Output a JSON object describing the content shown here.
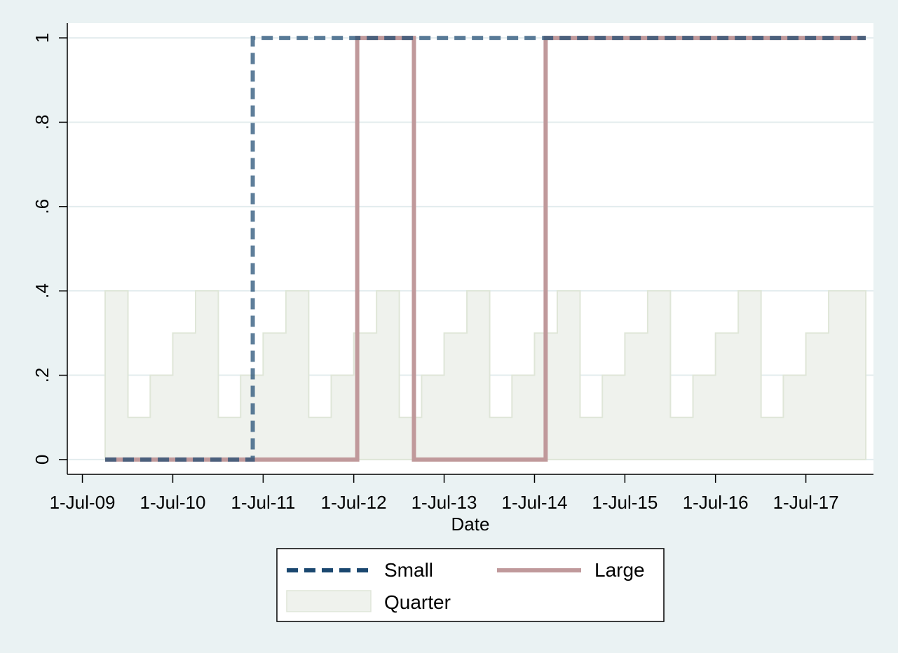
{
  "chart_data": {
    "type": "line",
    "title": "",
    "xlabel": "Date",
    "ylabel": "",
    "x_axis": {
      "type": "date",
      "range": [
        "2009-05-01",
        "2018-03-31"
      ],
      "ticks": [
        "2009-07-01",
        "2010-07-01",
        "2011-07-01",
        "2012-07-01",
        "2013-07-01",
        "2014-07-01",
        "2015-07-01",
        "2016-07-01",
        "2017-07-01"
      ],
      "tick_labels": [
        "1-Jul-09",
        "1-Jul-10",
        "1-Jul-11",
        "1-Jul-12",
        "1-Jul-13",
        "1-Jul-14",
        "1-Jul-15",
        "1-Jul-16",
        "1-Jul-17"
      ]
    },
    "y_axis": {
      "range": [
        -0.035,
        1.035
      ],
      "ticks": [
        0,
        0.2,
        0.4,
        0.6,
        0.8,
        1
      ],
      "tick_labels": [
        "0",
        ".2",
        ".4",
        ".6",
        ".8",
        "1"
      ]
    },
    "grid": true,
    "legend_placement": "bottom",
    "colors": {
      "small": "#1a476f",
      "large": "#c0999b",
      "quarter_fill": "#eff2ed",
      "quarter_edge": "#dfe6d8",
      "plot_bg": "#ffffff",
      "outer_bg": "#eaf2f3",
      "grid": "#e3ecee"
    },
    "series": [
      {
        "name": "Small",
        "kind": "step-line",
        "style": "dashed",
        "points": [
          {
            "x": "2009-10-01",
            "y": 0
          },
          {
            "x": "2011-05-20",
            "y": 0
          },
          {
            "x": "2011-05-20",
            "y": 1
          },
          {
            "x": "2018-02-28",
            "y": 1
          }
        ]
      },
      {
        "name": "Large",
        "kind": "step-line",
        "style": "solid",
        "points": [
          {
            "x": "2009-10-01",
            "y": 0
          },
          {
            "x": "2012-07-15",
            "y": 0
          },
          {
            "x": "2012-07-15",
            "y": 1
          },
          {
            "x": "2013-03-01",
            "y": 1
          },
          {
            "x": "2013-03-01",
            "y": 0
          },
          {
            "x": "2014-08-15",
            "y": 0
          },
          {
            "x": "2014-08-15",
            "y": 1
          },
          {
            "x": "2018-02-28",
            "y": 1
          }
        ]
      },
      {
        "name": "Quarter",
        "kind": "step-area",
        "start": "2009-10-01",
        "end": "2018-02-28",
        "steps": [
          {
            "x": "2009-10-01",
            "y": 0.4
          },
          {
            "x": "2010-01-01",
            "y": 0.1
          },
          {
            "x": "2010-04-01",
            "y": 0.2
          },
          {
            "x": "2010-07-01",
            "y": 0.3
          },
          {
            "x": "2010-10-01",
            "y": 0.4
          },
          {
            "x": "2011-01-01",
            "y": 0.1
          },
          {
            "x": "2011-04-01",
            "y": 0.2
          },
          {
            "x": "2011-07-01",
            "y": 0.3
          },
          {
            "x": "2011-10-01",
            "y": 0.4
          },
          {
            "x": "2012-01-01",
            "y": 0.1
          },
          {
            "x": "2012-04-01",
            "y": 0.2
          },
          {
            "x": "2012-07-01",
            "y": 0.3
          },
          {
            "x": "2012-10-01",
            "y": 0.4
          },
          {
            "x": "2013-01-01",
            "y": 0.1
          },
          {
            "x": "2013-04-01",
            "y": 0.2
          },
          {
            "x": "2013-07-01",
            "y": 0.3
          },
          {
            "x": "2013-10-01",
            "y": 0.4
          },
          {
            "x": "2014-01-01",
            "y": 0.1
          },
          {
            "x": "2014-04-01",
            "y": 0.2
          },
          {
            "x": "2014-07-01",
            "y": 0.3
          },
          {
            "x": "2014-10-01",
            "y": 0.4
          },
          {
            "x": "2015-01-01",
            "y": 0.1
          },
          {
            "x": "2015-04-01",
            "y": 0.2
          },
          {
            "x": "2015-07-01",
            "y": 0.3
          },
          {
            "x": "2015-10-01",
            "y": 0.4
          },
          {
            "x": "2016-01-01",
            "y": 0.1
          },
          {
            "x": "2016-04-01",
            "y": 0.2
          },
          {
            "x": "2016-07-01",
            "y": 0.3
          },
          {
            "x": "2016-10-01",
            "y": 0.4
          },
          {
            "x": "2017-01-01",
            "y": 0.1
          },
          {
            "x": "2017-04-01",
            "y": 0.2
          },
          {
            "x": "2017-07-01",
            "y": 0.3
          },
          {
            "x": "2017-10-01",
            "y": 0.4
          }
        ]
      }
    ],
    "legend": {
      "entries": [
        "Small",
        "Large",
        "Quarter"
      ]
    }
  }
}
